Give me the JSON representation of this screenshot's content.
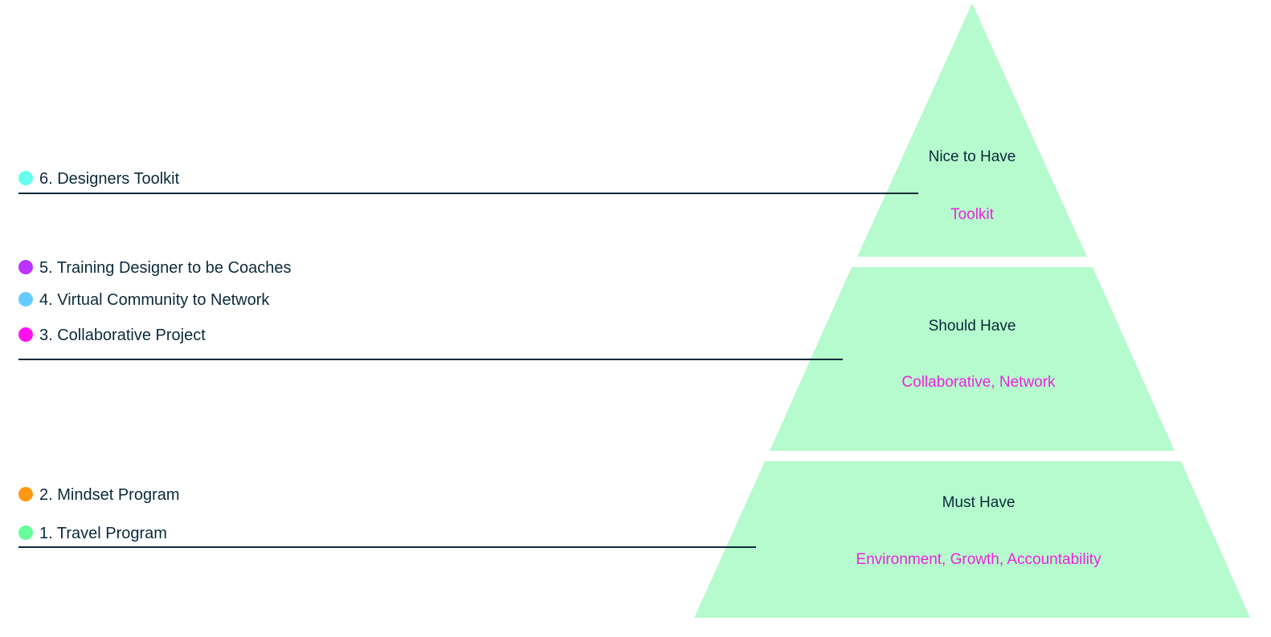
{
  "colors": {
    "tier_fill": "#b6fbcd",
    "title_text": "#0b2a3a",
    "subtitle_text": "#ee22dd",
    "divider": "#0b2a3a",
    "item_text": "#0b2a3a"
  },
  "pyramid": {
    "tiers": [
      {
        "title": "Nice to Have",
        "subtitle": "Toolkit"
      },
      {
        "title": "Should Have",
        "subtitle": "Collaborative, Network"
      },
      {
        "title": "Must Have",
        "subtitle": "Environment, Growth, Accountability"
      }
    ]
  },
  "items": [
    {
      "label": "6. Designers Toolkit",
      "color": "#66ffee"
    },
    {
      "label": "5. Training Designer to be Coaches",
      "color": "#bb33ff"
    },
    {
      "label": "4. Virtual Community to Network",
      "color": "#66ccff"
    },
    {
      "label": "3. Collaborative Project",
      "color": "#ff11ee"
    },
    {
      "label": "2. Mindset Program",
      "color": "#ff9911"
    },
    {
      "label": "1. Travel Program",
      "color": "#66ff99"
    }
  ]
}
